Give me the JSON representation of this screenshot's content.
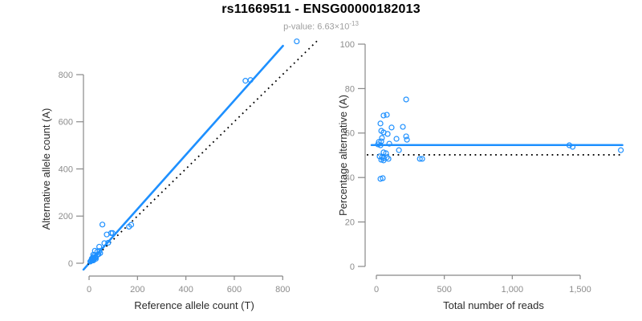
{
  "header": {
    "title": "rs11669511 - ENSG00000182013",
    "subtitle_text": "p-value: 6.63×10",
    "subtitle_exponent": "-13"
  },
  "colors": {
    "accent_blue": "#1E90FF",
    "dashed_black": "#000000",
    "axis_gray": "#888888",
    "tick_label_gray": "#8c8c8c",
    "axis_title_dark": "#2b2b2b",
    "title_black": "#000000",
    "subtitle_gray": "#9e9e9e"
  },
  "chart_data": [
    {
      "type": "scatter",
      "panel": "allele-counts",
      "title": "",
      "xlabel": "Reference allele count (T)",
      "ylabel": "Alternative allele count (A)",
      "xlim": [
        -25,
        960
      ],
      "ylim": [
        -30,
        950
      ],
      "grid": false,
      "xticks": {
        "values": [
          0,
          200,
          400,
          600,
          800
        ],
        "labels": [
          "0",
          "200",
          "400",
          "600",
          "800"
        ]
      },
      "yticks": {
        "values": [
          0,
          200,
          400,
          600,
          800
        ],
        "labels": [
          "0",
          "200",
          "400",
          "600",
          "800"
        ]
      },
      "points": [
        [
          55,
          164
        ],
        [
          17,
          36
        ],
        [
          24,
          53
        ],
        [
          11,
          19
        ],
        [
          42,
          70
        ],
        [
          73,
          122
        ],
        [
          14,
          22
        ],
        [
          21,
          32
        ],
        [
          34,
          49
        ],
        [
          17,
          24
        ],
        [
          91,
          128
        ],
        [
          97,
          128
        ],
        [
          63,
          85
        ],
        [
          8,
          10
        ],
        [
          16,
          20
        ],
        [
          5,
          7
        ],
        [
          14,
          16
        ],
        [
          43,
          52
        ],
        [
          79,
          87
        ],
        [
          26,
          27
        ],
        [
          35,
          36
        ],
        [
          12,
          12
        ],
        [
          21,
          20
        ],
        [
          27,
          26
        ],
        [
          39,
          38
        ],
        [
          46,
          43
        ],
        [
          19,
          17
        ],
        [
          28,
          25
        ],
        [
          165,
          155
        ],
        [
          174,
          163
        ],
        [
          18,
          12
        ],
        [
          28,
          19
        ],
        [
          646,
          774
        ],
        [
          667,
          777
        ],
        [
          858,
          941
        ]
      ],
      "lines": [
        {
          "name": "fit-line",
          "style": "solid",
          "color_key": "accent_blue",
          "x1": -23,
          "y1": -27,
          "x2": 801,
          "y2": 922
        },
        {
          "name": "identity-line",
          "style": "dotted",
          "color_key": "dashed_black",
          "x1": -5,
          "y1": -5,
          "x2": 944,
          "y2": 945
        }
      ]
    },
    {
      "type": "scatter",
      "panel": "percentage-vs-reads",
      "title": "",
      "xlabel": "Total number of reads",
      "ylabel": "Percentage alternative (A)",
      "xlim": [
        -70,
        1810
      ],
      "ylim": [
        0,
        100
      ],
      "grid": false,
      "xticks": {
        "values": [
          0,
          500,
          1000,
          1500
        ],
        "labels": [
          "0",
          "500",
          "1,000",
          "1,500"
        ]
      },
      "yticks": {
        "values": [
          0,
          20,
          40,
          60,
          80,
          100
        ],
        "labels": [
          "0",
          "20",
          "40",
          "60",
          "80",
          "100"
        ]
      },
      "points": [
        [
          219,
          75.1
        ],
        [
          53,
          67.9
        ],
        [
          77,
          68.2
        ],
        [
          30,
          64.3
        ],
        [
          112,
          62.5
        ],
        [
          195,
          62.8
        ],
        [
          36,
          61
        ],
        [
          53,
          60.3
        ],
        [
          83,
          59.6
        ],
        [
          41,
          57.8
        ],
        [
          219,
          58.5
        ],
        [
          225,
          57
        ],
        [
          148,
          57.4
        ],
        [
          18,
          56
        ],
        [
          36,
          56.3
        ],
        [
          12,
          54.9
        ],
        [
          30,
          54.5
        ],
        [
          95,
          55.2
        ],
        [
          166,
          52.3
        ],
        [
          53,
          51.3
        ],
        [
          71,
          50.9
        ],
        [
          24,
          49.5
        ],
        [
          41,
          49.1
        ],
        [
          53,
          48.7
        ],
        [
          77,
          49.1
        ],
        [
          89,
          48.4
        ],
        [
          36,
          48
        ],
        [
          53,
          47.7
        ],
        [
          320,
          48.4
        ],
        [
          337,
          48.4
        ],
        [
          30,
          39.4
        ],
        [
          47,
          39.7
        ],
        [
          1420,
          54.5
        ],
        [
          1444,
          53.8
        ],
        [
          1799,
          52.3
        ]
      ],
      "lines": [
        {
          "name": "fit-line",
          "style": "solid",
          "color_key": "accent_blue",
          "x1": -35,
          "y1": 54.6,
          "x2": 1810,
          "y2": 54.6
        },
        {
          "name": "null-line",
          "style": "dotted",
          "color_key": "dashed_black",
          "x1": -70,
          "y1": 50.2,
          "x2": 1810,
          "y2": 50.2
        }
      ]
    }
  ]
}
